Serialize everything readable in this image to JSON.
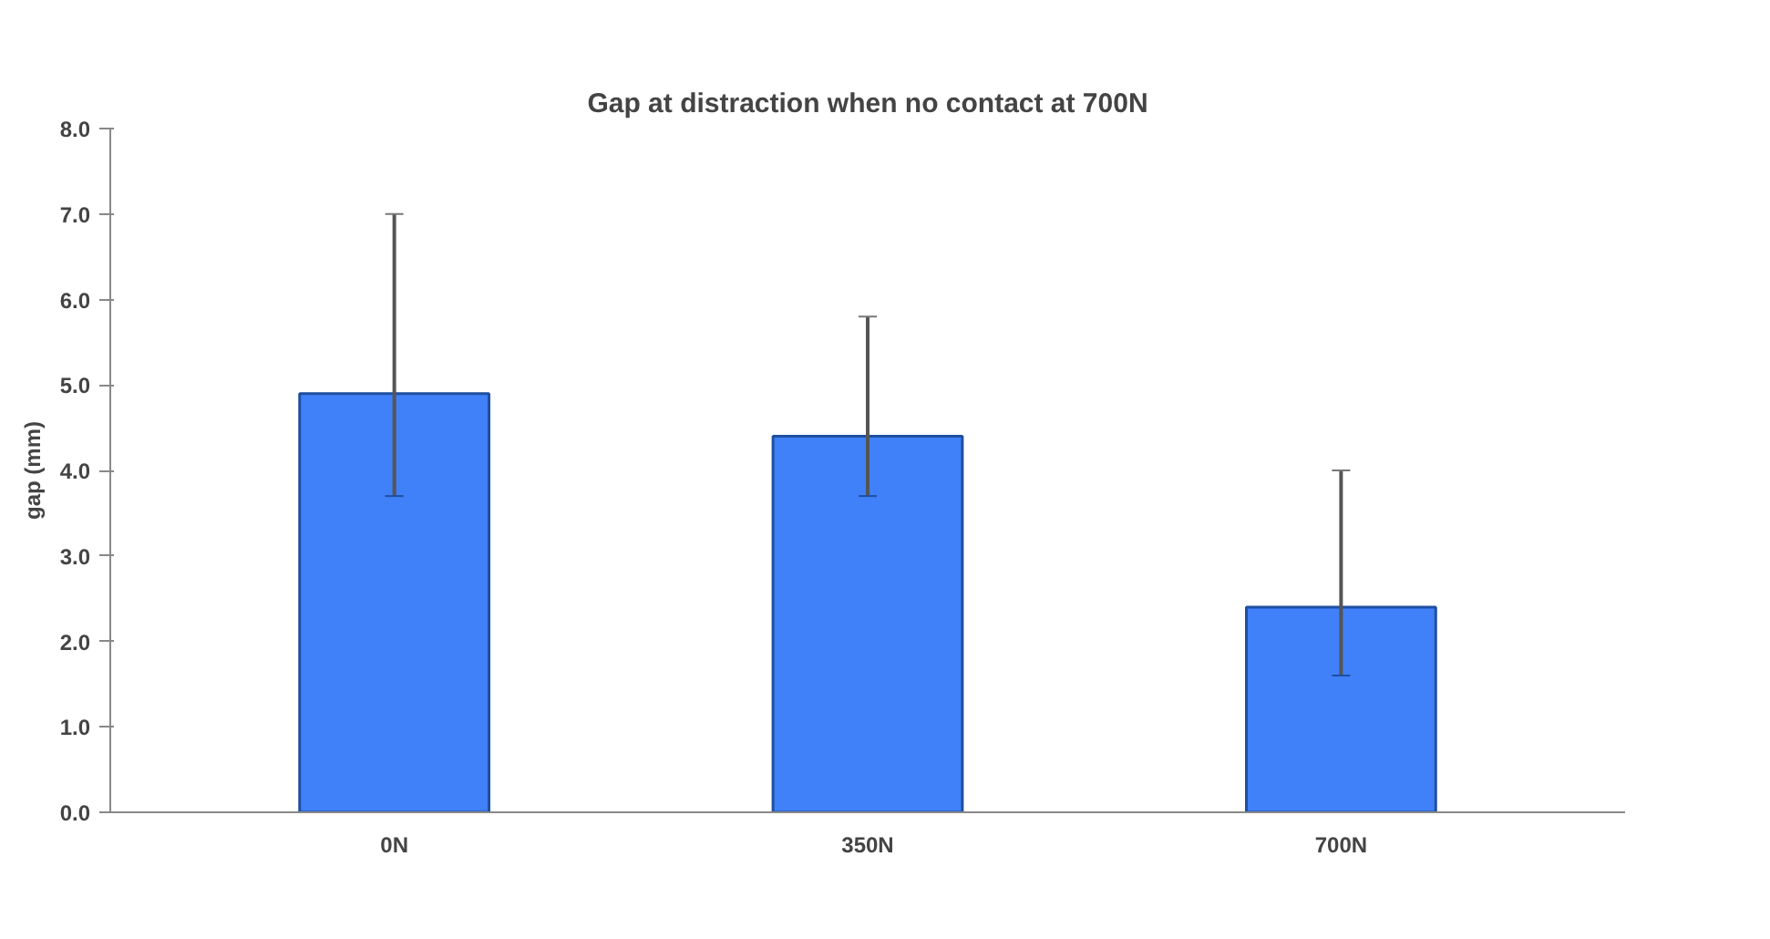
{
  "chart_data": {
    "type": "bar",
    "title": "Gap at distraction when no contact at 700N",
    "ylabel": "gap (mm)",
    "categories": [
      "0N",
      "350N",
      "700N"
    ],
    "values": [
      4.9,
      4.4,
      2.4
    ],
    "errors": [
      [
        3.7,
        7.0
      ],
      [
        3.7,
        5.8
      ],
      [
        1.6,
        4.0
      ]
    ],
    "color": "#4080f8",
    "ylim": [
      0,
      8
    ],
    "yticks": [
      {
        "value": 0,
        "label": "0.0"
      },
      {
        "value": 1,
        "label": "1.0"
      },
      {
        "value": 2,
        "label": "2.0"
      },
      {
        "value": 3,
        "label": "3.0"
      },
      {
        "value": 4,
        "label": "4.0"
      },
      {
        "value": 5,
        "label": "5.0"
      },
      {
        "value": 6,
        "label": "6.0"
      },
      {
        "value": 7,
        "label": "7.0"
      },
      {
        "value": 8,
        "label": "8.0"
      }
    ],
    "grid": false
  }
}
